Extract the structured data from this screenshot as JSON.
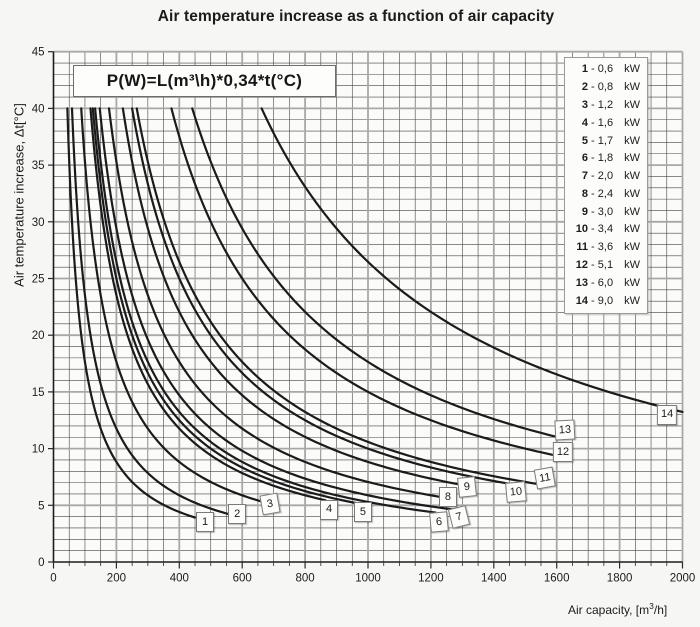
{
  "title": "Air temperature increase as a function of air capacity",
  "formula": "P(W)=L(m³\\h)*0,34*t(°C)",
  "axes": {
    "x_title_prefix": "Air capacity, [m",
    "x_title_sup": "3",
    "x_title_suffix": "/h]",
    "y_title": "Air temperature increase, Δt[°C]"
  },
  "legend": {
    "separator": " - ",
    "unit": "kW",
    "rows": [
      {
        "num": "1",
        "value": "0,6"
      },
      {
        "num": "2",
        "value": "0,8"
      },
      {
        "num": "3",
        "value": "1,2"
      },
      {
        "num": "4",
        "value": "1,6"
      },
      {
        "num": "5",
        "value": "1,7"
      },
      {
        "num": "6",
        "value": "1,8"
      },
      {
        "num": "7",
        "value": "2,0"
      },
      {
        "num": "8",
        "value": "2,4"
      },
      {
        "num": "9",
        "value": "3,0"
      },
      {
        "num": "10",
        "value": "3,4"
      },
      {
        "num": "11",
        "value": "3,6"
      },
      {
        "num": "12",
        "value": "5,1"
      },
      {
        "num": "13",
        "value": "6,0"
      },
      {
        "num": "14",
        "value": "9,0"
      }
    ]
  },
  "chart_data": {
    "type": "line",
    "title": "Air temperature increase as a function of air capacity",
    "xlabel": "Air capacity, [m³/h]",
    "ylabel": "Air temperature increase, Δt[°C]",
    "xlim": [
      0,
      2000
    ],
    "ylim": [
      0,
      45
    ],
    "x_ticks": [
      0,
      200,
      400,
      600,
      800,
      1000,
      1200,
      1400,
      1600,
      1800,
      2000
    ],
    "y_ticks": [
      0,
      5,
      10,
      15,
      20,
      25,
      30,
      35,
      40,
      45
    ],
    "x_minor_step": 50,
    "x_major_step": 200,
    "y_minor_step": 1,
    "y_major_step": 5,
    "grid": true,
    "legend_position": "top-right",
    "relation": "Δt(°C) = P(W) / (0,34 · L(m³/h)) ; each numbered curve is this hyperbola for its power rating, drawn from Δt = 40 °C down to its end capacity",
    "t_start_c": 40,
    "series": [
      {
        "id": "1",
        "power_kw": 0.6,
        "power_label": "0,6",
        "capacity_end_m3h": 450,
        "label_at": [
          482,
          3.5
        ],
        "label_rot": 0
      },
      {
        "id": "2",
        "power_kw": 0.8,
        "power_label": "0,8",
        "capacity_end_m3h": 560,
        "label_at": [
          584,
          4.2
        ],
        "label_rot": 0
      },
      {
        "id": "3",
        "power_kw": 1.2,
        "power_label": "1,2",
        "capacity_end_m3h": 665,
        "label_at": [
          688,
          5.1
        ],
        "label_rot": -10
      },
      {
        "id": "4",
        "power_kw": 1.6,
        "power_label": "1,6",
        "capacity_end_m3h": 865,
        "label_at": [
          876,
          4.6
        ],
        "label_rot": 0
      },
      {
        "id": "5",
        "power_kw": 1.7,
        "power_label": "1,7",
        "capacity_end_m3h": 975,
        "label_at": [
          984,
          4.4
        ],
        "label_rot": 0
      },
      {
        "id": "6",
        "power_kw": 1.8,
        "power_label": "1,8",
        "capacity_end_m3h": 1215,
        "label_at": [
          1226,
          3.5
        ],
        "label_rot": -5
      },
      {
        "id": "7",
        "power_kw": 2.0,
        "power_label": "2,0",
        "capacity_end_m3h": 1280,
        "label_at": [
          1289,
          4.0
        ],
        "label_rot": -14
      },
      {
        "id": "8",
        "power_kw": 2.4,
        "power_label": "2,4",
        "capacity_end_m3h": 1245,
        "label_at": [
          1254,
          5.7
        ],
        "label_rot": 0
      },
      {
        "id": "9",
        "power_kw": 3.0,
        "power_label": "3,0",
        "capacity_end_m3h": 1305,
        "label_at": [
          1315,
          6.6
        ],
        "label_rot": -6
      },
      {
        "id": "10",
        "power_kw": 3.4,
        "power_label": "3,4",
        "capacity_end_m3h": 1460,
        "label_at": [
          1471,
          6.2
        ],
        "label_rot": -5
      },
      {
        "id": "11",
        "power_kw": 3.6,
        "power_label": "3,6",
        "capacity_end_m3h": 1550,
        "label_at": [
          1563,
          7.4
        ],
        "label_rot": -10
      },
      {
        "id": "12",
        "power_kw": 5.1,
        "power_label": "5,1",
        "capacity_end_m3h": 1600,
        "label_at": [
          1620,
          9.7
        ],
        "label_rot": 0
      },
      {
        "id": "13",
        "power_kw": 6.0,
        "power_label": "6,0",
        "capacity_end_m3h": 1615,
        "label_at": [
          1627,
          11.6
        ],
        "label_rot": -3
      },
      {
        "id": "14",
        "power_kw": 9.0,
        "power_label": "9,0",
        "capacity_end_m3h": 2000,
        "label_at": [
          1951,
          13.0
        ],
        "label_rot": 0
      }
    ],
    "colors": {
      "curve": "#1b1b1b",
      "grid_minor": "#454545",
      "grid_major": "#a8a8a8",
      "axis": "#1d1d1d",
      "plot_bg": "#fbfbf9",
      "figure_bg": "#f6f6f4",
      "text": "#1c1c1c"
    }
  }
}
